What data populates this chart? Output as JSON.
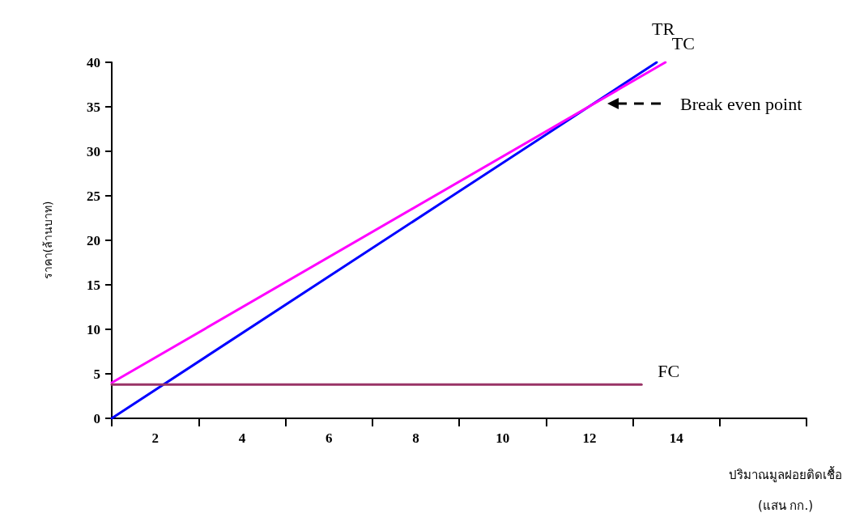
{
  "chart_data": {
    "type": "line",
    "xlabel": "ปริมาณมูลฝอยติดเชื้อ\n(แสน กก.)",
    "ylabel": "ราคา(ล้านบาท)",
    "xlim": [
      1,
      17
    ],
    "xticks": [
      {
        "value": 1,
        "label": null
      },
      2,
      {
        "value": 3,
        "label": null
      },
      4,
      {
        "value": 5,
        "label": null
      },
      6,
      {
        "value": 7,
        "label": null
      },
      8,
      {
        "value": 9,
        "label": null
      },
      10,
      {
        "value": 11,
        "label": null
      },
      12,
      {
        "value": 13,
        "label": null
      },
      14,
      {
        "value": 15,
        "label": null
      },
      {
        "value": 17,
        "label": null
      }
    ],
    "ylim": [
      0,
      40
    ],
    "yticks": [
      0,
      5,
      10,
      15,
      20,
      25,
      30,
      35,
      40
    ],
    "grid": false,
    "marker": "none",
    "line_style": "solid",
    "series": [
      {
        "color": "#0000ff",
        "x": [
          1,
          13.55
        ],
        "values": [
          0,
          40
        ]
      },
      {
        "color": "#ff00ff",
        "x": [
          1,
          13.75
        ],
        "values": [
          4.0,
          40
        ]
      },
      {
        "color": "#993366",
        "x": [
          1,
          13.2
        ],
        "values": [
          3.8,
          3.8
        ]
      }
    ],
    "annotations": [
      {
        "text": "TR",
        "x": 13.55,
        "y": 40
      },
      {
        "text": "TC",
        "x": 13.75,
        "y": 40
      },
      {
        "text": "FC",
        "x": 13.2,
        "y": 3.8
      },
      "Break even point"
    ]
  }
}
